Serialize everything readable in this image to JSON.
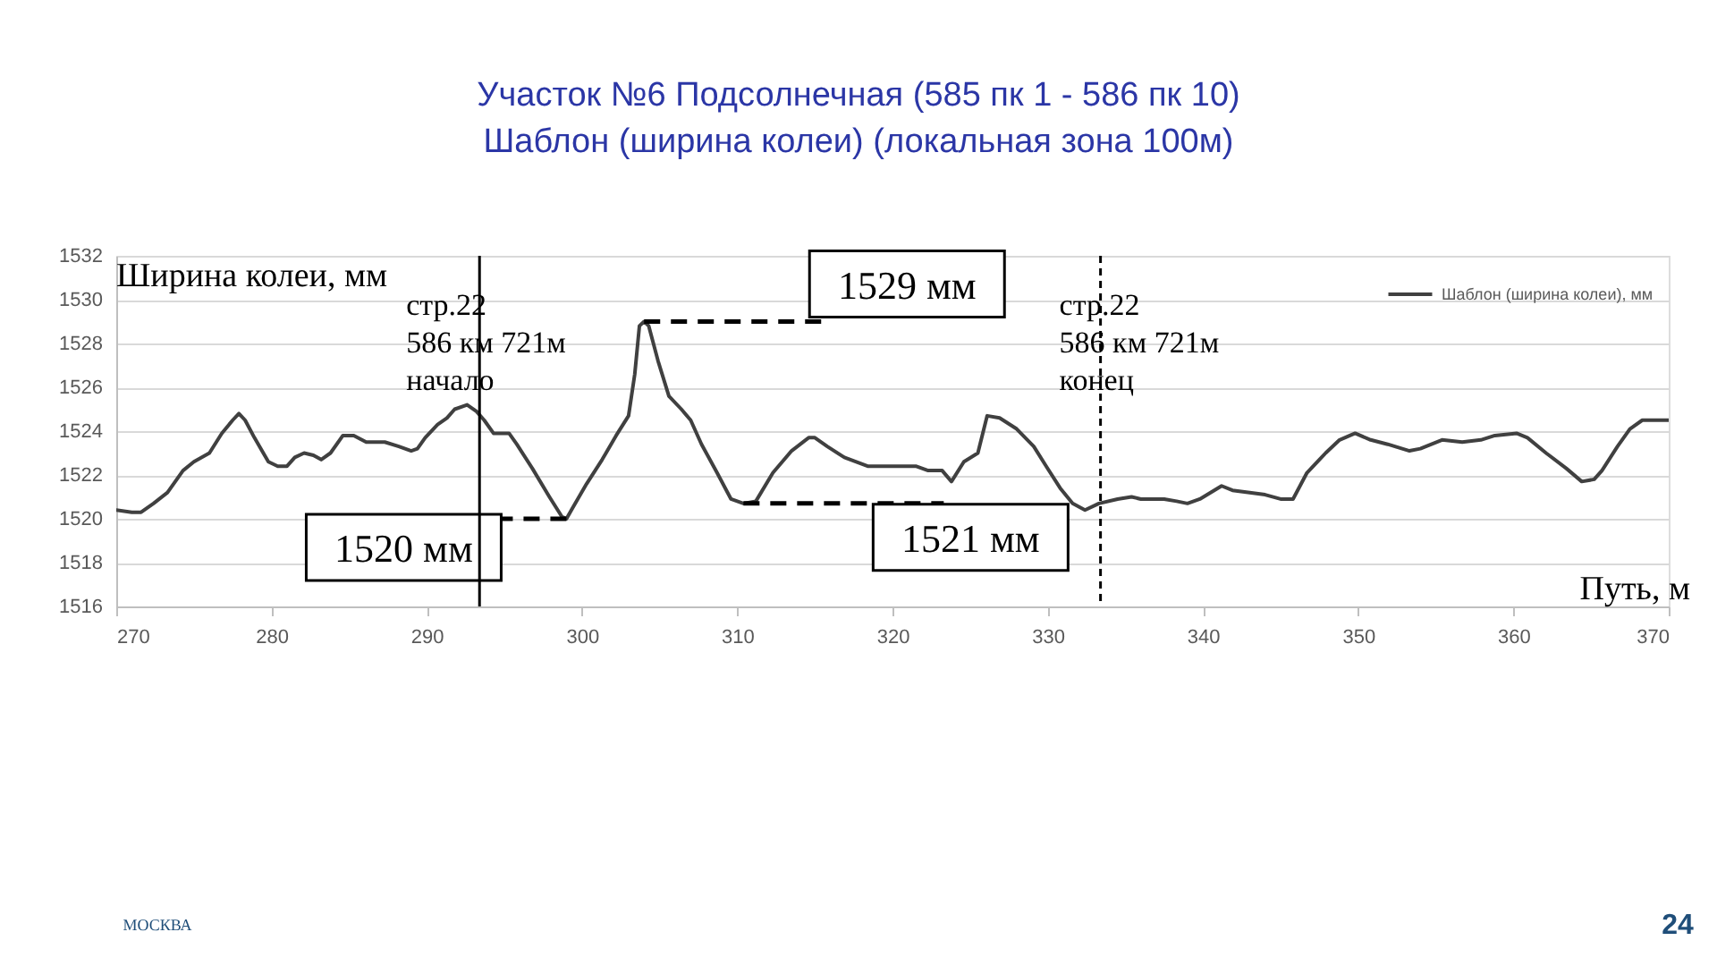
{
  "chart_data": {
    "type": "line",
    "title": "Участок №6 Подсолнечная (585 пк 1 - 586 пк 10)",
    "subtitle": "Шаблон (ширина колеи) (локальная зона 100м)",
    "xlabel": "Путь, м",
    "ylabel": "Ширина колеи, мм",
    "x": [
      270,
      271,
      271.6,
      272.4,
      273.3,
      274.3,
      275,
      276,
      276.8,
      277.5,
      277.9,
      278.3,
      278.9,
      279.8,
      280.4,
      281,
      281.5,
      282.1,
      282.7,
      283.2,
      283.8,
      284.6,
      285.3,
      286.1,
      287.3,
      288.2,
      289,
      289.4,
      289.9,
      290.7,
      291.3,
      291.8,
      292.6,
      293.2,
      293.7,
      294.3,
      295.3,
      295.8,
      296.8,
      297.9,
      298.7,
      299,
      299.4,
      300.3,
      301.3,
      302.2,
      303,
      303.4,
      303.7,
      304,
      304.3,
      304.9,
      305.6,
      306.4,
      307,
      307.7,
      308.7,
      309.6,
      310.4,
      311.2,
      312.3,
      313.5,
      314.6,
      315,
      315.8,
      316.9,
      318.4,
      320,
      321.5,
      322.3,
      323.2,
      323.8,
      324.6,
      325.5,
      326.1,
      326.9,
      328,
      329.1,
      329.9,
      330.8,
      331.6,
      332.4,
      333.3,
      334.5,
      335.4,
      336,
      337.5,
      338.3,
      339,
      339.8,
      341.2,
      341.9,
      342.9,
      344,
      345,
      345.8,
      346.7,
      347.9,
      348.8,
      349.8,
      350.8,
      351.9,
      353.3,
      354,
      355.4,
      356.7,
      357.9,
      358.8,
      360.2,
      360.9,
      362.1,
      363.4,
      364.4,
      365.2,
      365.7,
      366.7,
      367.5,
      368.3,
      369.4,
      370
    ],
    "series": [
      {
        "name": "Шаблон (ширина колеи), мм",
        "color": "#404040",
        "values": [
          1520.4,
          1520.3,
          1520.3,
          1520.7,
          1521.2,
          1522.2,
          1522.6,
          1523.0,
          1523.9,
          1524.5,
          1524.8,
          1524.5,
          1523.7,
          1522.6,
          1522.4,
          1522.4,
          1522.8,
          1523.0,
          1522.9,
          1522.7,
          1523.0,
          1523.8,
          1523.8,
          1523.5,
          1523.5,
          1523.3,
          1523.1,
          1523.2,
          1523.7,
          1524.3,
          1524.6,
          1525.0,
          1525.2,
          1524.9,
          1524.5,
          1523.9,
          1523.9,
          1523.4,
          1522.3,
          1521.0,
          1520.1,
          1520.0,
          1520.5,
          1521.6,
          1522.7,
          1523.8,
          1524.7,
          1526.6,
          1528.8,
          1529.0,
          1528.8,
          1527.2,
          1525.6,
          1525.0,
          1524.5,
          1523.4,
          1522.1,
          1520.9,
          1520.7,
          1520.8,
          1522.1,
          1523.1,
          1523.7,
          1523.7,
          1523.3,
          1522.8,
          1522.4,
          1522.4,
          1522.4,
          1522.2,
          1522.2,
          1521.7,
          1522.6,
          1523.0,
          1524.7,
          1524.6,
          1524.1,
          1523.3,
          1522.4,
          1521.4,
          1520.7,
          1520.4,
          1520.7,
          1520.9,
          1521.0,
          1520.9,
          1520.9,
          1520.8,
          1520.7,
          1520.9,
          1521.5,
          1521.3,
          1521.2,
          1521.1,
          1520.9,
          1520.9,
          1522.1,
          1523.0,
          1523.6,
          1523.9,
          1523.6,
          1523.4,
          1523.1,
          1523.2,
          1523.6,
          1523.5,
          1523.6,
          1523.8,
          1523.9,
          1523.7,
          1523.0,
          1522.3,
          1521.7,
          1521.8,
          1522.2,
          1523.3,
          1524.1,
          1524.5,
          1524.5,
          1524.5
        ]
      }
    ],
    "xlim": [
      270,
      370
    ],
    "ylim": [
      1516,
      1532
    ],
    "xticks": [
      270,
      280,
      290,
      300,
      310,
      320,
      330,
      340,
      350,
      360,
      370
    ],
    "yticks": [
      1516,
      1518,
      1520,
      1522,
      1524,
      1526,
      1528,
      1530,
      1532
    ],
    "grid": "y",
    "legend": "top right",
    "ref_lines": [
      {
        "axis": "x",
        "value": 293.4,
        "label": "стр.22\n586 км 721м\nначало",
        "color": "#000000",
        "line_style": "solid"
      },
      {
        "axis": "x",
        "value": 333.4,
        "label": "стр.22\n586 км 721м\nконец",
        "color": "#000000",
        "line_style": "dashed"
      }
    ],
    "annotations": [
      {
        "text": "1520 мм",
        "x": 299,
        "y": 1520
      },
      {
        "text": "1529 мм",
        "x": 304,
        "y": 1529
      },
      {
        "text": "1521 мм",
        "x": 310.4,
        "y": 1520.7
      },
      "МОСКВА",
      "24"
    ]
  }
}
